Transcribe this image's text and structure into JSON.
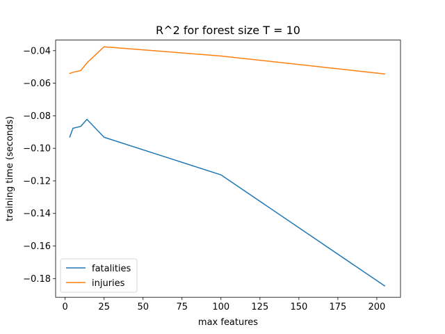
{
  "chart_data": {
    "type": "line",
    "title": "R^2 for forest size T = 10",
    "xlabel": "max features",
    "ylabel": "training time (seconds)",
    "xlim": [
      -6.1,
      215.2
    ],
    "ylim": [
      -0.1915,
      -0.0335
    ],
    "xticks": [
      0,
      25,
      50,
      75,
      100,
      125,
      150,
      175,
      200
    ],
    "yticks": [
      -0.18,
      -0.16,
      -0.14,
      -0.12,
      -0.1,
      -0.08,
      -0.06,
      -0.04
    ],
    "ytick_labels": [
      "−0.18",
      "−0.16",
      "−0.14",
      "−0.12",
      "−0.10",
      "−0.08",
      "−0.06",
      "−0.04"
    ],
    "grid": false,
    "legend": "lower-left",
    "series": [
      {
        "name": "fatalities",
        "color": "#1f77b4",
        "x": [
          3,
          5,
          10,
          14,
          25,
          100,
          205
        ],
        "y": [
          -0.093,
          -0.0877,
          -0.0865,
          -0.0822,
          -0.0932,
          -0.1163,
          -0.1845
        ]
      },
      {
        "name": "injuries",
        "color": "#ff7f0e",
        "x": [
          3,
          5,
          10,
          14,
          25,
          100,
          205
        ],
        "y": [
          -0.054,
          -0.0533,
          -0.0522,
          -0.0475,
          -0.0376,
          -0.0433,
          -0.0543
        ]
      }
    ]
  }
}
